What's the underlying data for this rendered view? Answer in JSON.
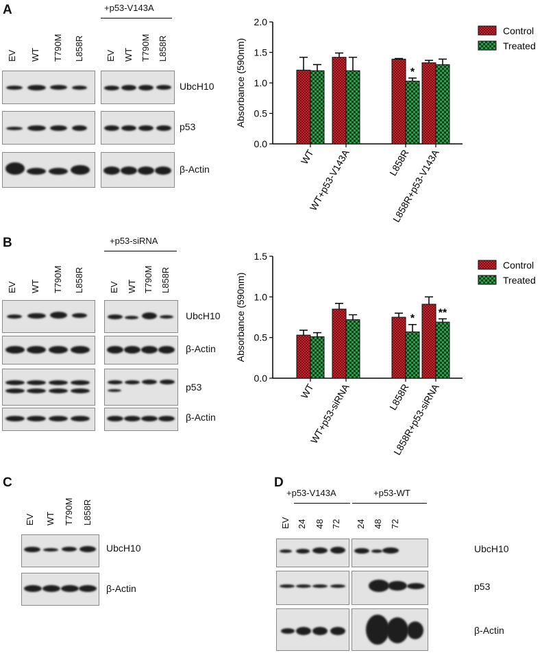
{
  "panels": {
    "A": {
      "letter": "A",
      "blot_header": "+p53-V143A",
      "left_lanes": [
        "EV",
        "WT",
        "T790M",
        "L858R"
      ],
      "right_lanes": [
        "EV",
        "WT",
        "T790M",
        "L858R"
      ],
      "rows": [
        "UbcH10",
        "p53",
        "β-Actin"
      ]
    },
    "B": {
      "letter": "B",
      "blot_header": "+p53-siRNA",
      "left_lanes": [
        "EV",
        "WT",
        "T790M",
        "L858R"
      ],
      "right_lanes": [
        "EV",
        "WT",
        "T790M",
        "L858R"
      ],
      "rows": [
        "UbcH10",
        "β-Actin",
        "p53",
        "β-Actin"
      ]
    },
    "C": {
      "letter": "C",
      "lanes": [
        "EV",
        "WT",
        "T790M",
        "L858R"
      ],
      "rows": [
        "UbcH10",
        "β-Actin"
      ]
    },
    "D": {
      "letter": "D",
      "group1_header": "+p53-V143A",
      "group2_header": "+p53-WT",
      "left_lanes": [
        "EV",
        "24",
        "48",
        "72"
      ],
      "right_lanes": [
        "24",
        "48",
        "72"
      ],
      "rows": [
        "UbcH10",
        "p53",
        "β-Actin"
      ]
    }
  },
  "colors": {
    "control": "#c1272d",
    "treated": "#1f8a3a"
  },
  "chart_data": [
    {
      "type": "bar",
      "panel": "A",
      "ylabel": "Absorbance (590nm)",
      "ylim": [
        0,
        2.0
      ],
      "yticks": [
        "0.0",
        "0.5",
        "1.0",
        "1.5",
        "2.0"
      ],
      "legend_placement": "top-right",
      "categories": [
        "WT",
        "WT+p53-V143A",
        "L858R",
        "L858R+p53-V143A"
      ],
      "series": [
        {
          "name": "Control",
          "values": [
            1.21,
            1.42,
            1.39,
            1.33
          ],
          "errors": [
            0.21,
            0.07,
            0.01,
            0.04
          ]
        },
        {
          "name": "Treated",
          "values": [
            1.2,
            1.2,
            1.03,
            1.3
          ],
          "errors": [
            0.1,
            0.22,
            0.05,
            0.09
          ]
        }
      ],
      "annotations": [
        {
          "category": "L858R",
          "series": "Treated",
          "text": "*"
        }
      ]
    },
    {
      "type": "bar",
      "panel": "B",
      "ylabel": "Absorbance (590nm)",
      "ylim": [
        0,
        1.5
      ],
      "yticks": [
        "0.0",
        "0.5",
        "1.0",
        "1.5"
      ],
      "legend_placement": "top-right",
      "categories": [
        "WT",
        "WT+p53-siRNA",
        "L858R",
        "L858R+p53-siRNA"
      ],
      "series": [
        {
          "name": "Control",
          "values": [
            0.53,
            0.85,
            0.75,
            0.91
          ],
          "errors": [
            0.06,
            0.07,
            0.05,
            0.09
          ]
        },
        {
          "name": "Treated",
          "values": [
            0.51,
            0.72,
            0.57,
            0.69
          ],
          "errors": [
            0.05,
            0.06,
            0.09,
            0.04
          ]
        }
      ],
      "annotations": [
        {
          "category": "L858R",
          "series": "Treated",
          "text": "*"
        },
        {
          "category": "L858R+p53-siRNA",
          "series": "Treated",
          "text": "**"
        }
      ]
    }
  ]
}
